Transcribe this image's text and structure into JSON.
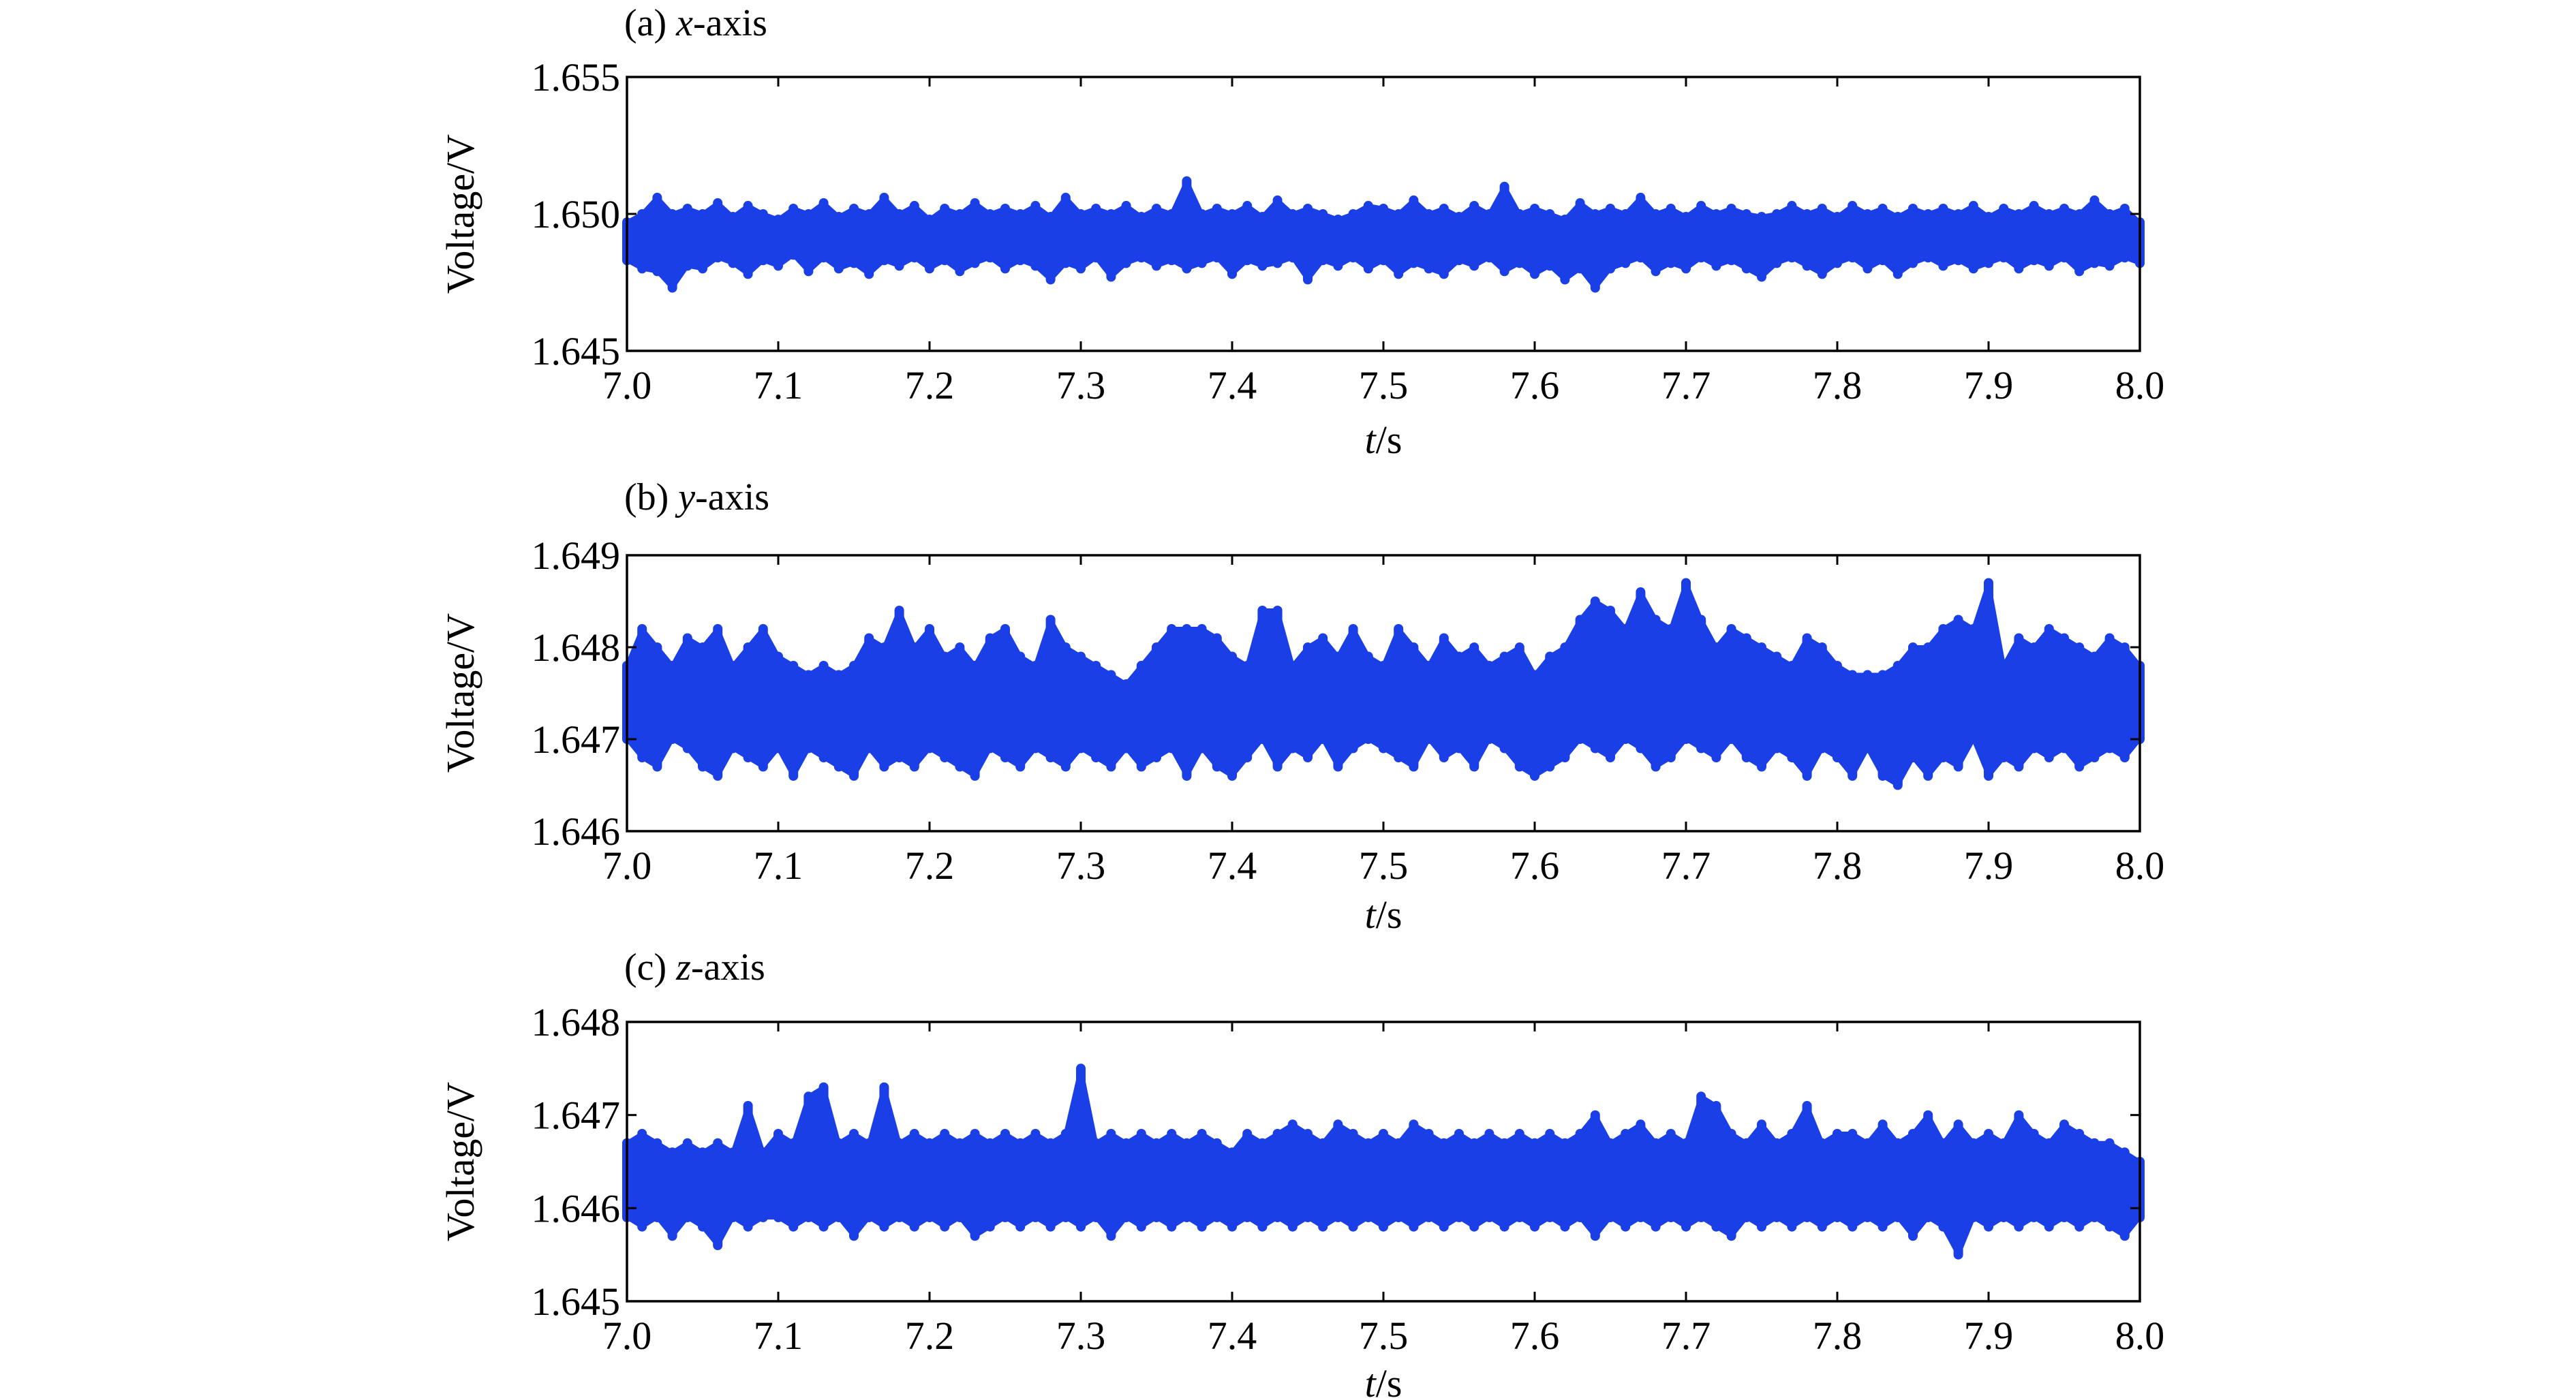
{
  "chart_data": [
    {
      "type": "line",
      "panel_label": "(a)",
      "title_var": "x",
      "title_suffix": "-axis",
      "xlabel_var": "t",
      "xlabel_unit": "/s",
      "ylabel": "Voltage/V",
      "xlim": [
        7.0,
        8.0
      ],
      "ylim": [
        1.645,
        1.655
      ],
      "x_ticks": [
        "7.0",
        "7.1",
        "7.2",
        "7.3",
        "7.4",
        "7.5",
        "7.6",
        "7.7",
        "7.8",
        "7.9",
        "8.0"
      ],
      "y_ticks": [
        "1.645",
        "1.650",
        "1.655"
      ],
      "grid": false,
      "color": "#1a3fe6",
      "series": [
        {
          "x": [
            7.0,
            7.01,
            7.02,
            7.03,
            7.04,
            7.05,
            7.06,
            7.07,
            7.08,
            7.09,
            7.1,
            7.11,
            7.12,
            7.13,
            7.14,
            7.15,
            7.16,
            7.17,
            7.18,
            7.19,
            7.2,
            7.21,
            7.22,
            7.23,
            7.24,
            7.25,
            7.26,
            7.27,
            7.28,
            7.29,
            7.3,
            7.31,
            7.32,
            7.33,
            7.34,
            7.35,
            7.36,
            7.37,
            7.38,
            7.39,
            7.4,
            7.41,
            7.42,
            7.43,
            7.44,
            7.45,
            7.46,
            7.47,
            7.48,
            7.49,
            7.5,
            7.51,
            7.52,
            7.53,
            7.54,
            7.55,
            7.56,
            7.57,
            7.58,
            7.59,
            7.6,
            7.61,
            7.62,
            7.63,
            7.64,
            7.65,
            7.66,
            7.67,
            7.68,
            7.69,
            7.7,
            7.71,
            7.72,
            7.73,
            7.74,
            7.75,
            7.76,
            7.77,
            7.78,
            7.79,
            7.8,
            7.81,
            7.82,
            7.83,
            7.84,
            7.85,
            7.86,
            7.87,
            7.88,
            7.89,
            7.9,
            7.91,
            7.92,
            7.93,
            7.94,
            7.95,
            7.96,
            7.97,
            7.98,
            7.99,
            8.0
          ],
          "low": [
            1.6483,
            1.648,
            1.6479,
            1.6473,
            1.6481,
            1.648,
            1.6484,
            1.6482,
            1.6478,
            1.6483,
            1.6481,
            1.6485,
            1.6479,
            1.6484,
            1.648,
            1.6482,
            1.6478,
            1.6483,
            1.6481,
            1.6484,
            1.648,
            1.6483,
            1.6479,
            1.6482,
            1.6484,
            1.648,
            1.6483,
            1.6481,
            1.6476,
            1.6482,
            1.648,
            1.6484,
            1.6477,
            1.6482,
            1.6484,
            1.6481,
            1.6483,
            1.648,
            1.6482,
            1.6484,
            1.6478,
            1.6483,
            1.6481,
            1.6482,
            1.6484,
            1.6476,
            1.6483,
            1.6481,
            1.6484,
            1.648,
            1.6483,
            1.6478,
            1.6482,
            1.648,
            1.6478,
            1.6483,
            1.6481,
            1.6484,
            1.6479,
            1.6482,
            1.6478,
            1.6481,
            1.6476,
            1.648,
            1.6473,
            1.648,
            1.6482,
            1.6484,
            1.6479,
            1.6482,
            1.648,
            1.6484,
            1.6481,
            1.6483,
            1.648,
            1.6477,
            1.6482,
            1.6484,
            1.6481,
            1.6478,
            1.6482,
            1.6484,
            1.648,
            1.6483,
            1.6478,
            1.6482,
            1.6484,
            1.6481,
            1.6483,
            1.648,
            1.6482,
            1.6484,
            1.648,
            1.6483,
            1.6481,
            1.6484,
            1.6479,
            1.6482,
            1.6481,
            1.6484,
            1.6482
          ],
          "high": [
            1.6497,
            1.65,
            1.6506,
            1.65,
            1.6502,
            1.65,
            1.6504,
            1.6499,
            1.6503,
            1.65,
            1.6498,
            1.6502,
            1.65,
            1.6504,
            1.6499,
            1.6502,
            1.65,
            1.6506,
            1.65,
            1.6503,
            1.6498,
            1.6502,
            1.65,
            1.6504,
            1.65,
            1.6502,
            1.65,
            1.6503,
            1.6499,
            1.6506,
            1.65,
            1.6502,
            1.65,
            1.6503,
            1.6499,
            1.6502,
            1.65,
            1.6512,
            1.65,
            1.6502,
            1.65,
            1.6503,
            1.6499,
            1.6505,
            1.65,
            1.6502,
            1.65,
            1.6498,
            1.65,
            1.6503,
            1.6502,
            1.65,
            1.6505,
            1.65,
            1.6502,
            1.6499,
            1.6503,
            1.65,
            1.651,
            1.65,
            1.6502,
            1.65,
            1.6498,
            1.6504,
            1.65,
            1.6502,
            1.65,
            1.6506,
            1.65,
            1.6502,
            1.6499,
            1.6503,
            1.65,
            1.6502,
            1.65,
            1.6499,
            1.65,
            1.6503,
            1.65,
            1.6502,
            1.6499,
            1.6503,
            1.65,
            1.6502,
            1.6499,
            1.6502,
            1.65,
            1.6502,
            1.65,
            1.6503,
            1.6499,
            1.6502,
            1.65,
            1.6503,
            1.65,
            1.6502,
            1.65,
            1.6505,
            1.65,
            1.6502,
            1.6497
          ]
        }
      ]
    },
    {
      "type": "line",
      "panel_label": "(b)",
      "title_var": "y",
      "title_suffix": "-axis",
      "xlabel_var": "t",
      "xlabel_unit": "/s",
      "ylabel": "Voltage/V",
      "xlim": [
        7.0,
        8.0
      ],
      "ylim": [
        1.646,
        1.649
      ],
      "x_ticks": [
        "7.0",
        "7.1",
        "7.2",
        "7.3",
        "7.4",
        "7.5",
        "7.6",
        "7.7",
        "7.8",
        "7.9",
        "8.0"
      ],
      "y_ticks": [
        "1.646",
        "1.647",
        "1.648",
        "1.649"
      ],
      "grid": false,
      "color": "#1a3fe6",
      "series": [
        {
          "x": [
            7.0,
            7.01,
            7.02,
            7.03,
            7.04,
            7.05,
            7.06,
            7.07,
            7.08,
            7.09,
            7.1,
            7.11,
            7.12,
            7.13,
            7.14,
            7.15,
            7.16,
            7.17,
            7.18,
            7.19,
            7.2,
            7.21,
            7.22,
            7.23,
            7.24,
            7.25,
            7.26,
            7.27,
            7.28,
            7.29,
            7.3,
            7.31,
            7.32,
            7.33,
            7.34,
            7.35,
            7.36,
            7.37,
            7.38,
            7.39,
            7.4,
            7.41,
            7.42,
            7.43,
            7.44,
            7.45,
            7.46,
            7.47,
            7.48,
            7.49,
            7.5,
            7.51,
            7.52,
            7.53,
            7.54,
            7.55,
            7.56,
            7.57,
            7.58,
            7.59,
            7.6,
            7.61,
            7.62,
            7.63,
            7.64,
            7.65,
            7.66,
            7.67,
            7.68,
            7.69,
            7.7,
            7.71,
            7.72,
            7.73,
            7.74,
            7.75,
            7.76,
            7.77,
            7.78,
            7.79,
            7.8,
            7.81,
            7.82,
            7.83,
            7.84,
            7.85,
            7.86,
            7.87,
            7.88,
            7.89,
            7.9,
            7.91,
            7.92,
            7.93,
            7.94,
            7.95,
            7.96,
            7.97,
            7.98,
            7.99,
            8.0
          ],
          "low": [
            1.647,
            1.6468,
            1.6467,
            1.647,
            1.6469,
            1.6467,
            1.6466,
            1.6469,
            1.6468,
            1.6467,
            1.6469,
            1.6466,
            1.6469,
            1.6468,
            1.6467,
            1.6466,
            1.6469,
            1.6467,
            1.6468,
            1.6467,
            1.6469,
            1.6468,
            1.6467,
            1.6466,
            1.6469,
            1.6468,
            1.6467,
            1.6469,
            1.6468,
            1.6467,
            1.6469,
            1.6468,
            1.6467,
            1.6469,
            1.6467,
            1.6468,
            1.6469,
            1.6466,
            1.6469,
            1.6467,
            1.6466,
            1.6468,
            1.647,
            1.6467,
            1.6469,
            1.6468,
            1.647,
            1.6467,
            1.6469,
            1.647,
            1.6469,
            1.6468,
            1.6467,
            1.647,
            1.6468,
            1.6469,
            1.6467,
            1.647,
            1.6469,
            1.6467,
            1.6466,
            1.6467,
            1.6468,
            1.647,
            1.6469,
            1.6468,
            1.647,
            1.6469,
            1.6467,
            1.6468,
            1.647,
            1.6469,
            1.6468,
            1.647,
            1.6468,
            1.6467,
            1.6469,
            1.6468,
            1.6466,
            1.6469,
            1.6468,
            1.6466,
            1.6469,
            1.6466,
            1.6465,
            1.6468,
            1.6466,
            1.6468,
            1.6467,
            1.647,
            1.6466,
            1.6468,
            1.6467,
            1.6469,
            1.6468,
            1.6469,
            1.6467,
            1.6468,
            1.6469,
            1.6468,
            1.647
          ],
          "high": [
            1.6478,
            1.6482,
            1.648,
            1.6478,
            1.6481,
            1.648,
            1.6482,
            1.6478,
            1.648,
            1.6482,
            1.6479,
            1.6478,
            1.6477,
            1.6478,
            1.6477,
            1.6478,
            1.6481,
            1.648,
            1.6484,
            1.648,
            1.6482,
            1.6479,
            1.648,
            1.6478,
            1.6481,
            1.6482,
            1.6479,
            1.6478,
            1.6483,
            1.648,
            1.6479,
            1.6478,
            1.6477,
            1.6476,
            1.6478,
            1.648,
            1.6482,
            1.6482,
            1.6482,
            1.6481,
            1.6479,
            1.6478,
            1.6484,
            1.6484,
            1.6478,
            1.648,
            1.6481,
            1.6479,
            1.6482,
            1.6479,
            1.6478,
            1.6482,
            1.648,
            1.6478,
            1.6481,
            1.6479,
            1.648,
            1.6478,
            1.6479,
            1.648,
            1.6477,
            1.6479,
            1.648,
            1.6483,
            1.6485,
            1.6484,
            1.6482,
            1.6486,
            1.6483,
            1.6482,
            1.6487,
            1.6483,
            1.648,
            1.6482,
            1.6481,
            1.648,
            1.6479,
            1.6478,
            1.6481,
            1.648,
            1.6478,
            1.6477,
            1.6477,
            1.6477,
            1.6478,
            1.648,
            1.648,
            1.6482,
            1.6483,
            1.6482,
            1.6487,
            1.6478,
            1.6481,
            1.648,
            1.6482,
            1.6481,
            1.648,
            1.6479,
            1.6481,
            1.648,
            1.6478
          ]
        }
      ]
    },
    {
      "type": "line",
      "panel_label": "(c)",
      "title_var": "z",
      "title_suffix": "-axis",
      "xlabel_var": "t",
      "xlabel_unit": "/s",
      "ylabel": "Voltage/V",
      "xlim": [
        7.0,
        8.0
      ],
      "ylim": [
        1.645,
        1.648
      ],
      "x_ticks": [
        "7.0",
        "7.1",
        "7.2",
        "7.3",
        "7.4",
        "7.5",
        "7.6",
        "7.7",
        "7.8",
        "7.9",
        "8.0"
      ],
      "y_ticks": [
        "1.645",
        "1.646",
        "1.647",
        "1.648"
      ],
      "grid": false,
      "color": "#1a3fe6",
      "series": [
        {
          "x": [
            7.0,
            7.01,
            7.02,
            7.03,
            7.04,
            7.05,
            7.06,
            7.07,
            7.08,
            7.09,
            7.1,
            7.11,
            7.12,
            7.13,
            7.14,
            7.15,
            7.16,
            7.17,
            7.18,
            7.19,
            7.2,
            7.21,
            7.22,
            7.23,
            7.24,
            7.25,
            7.26,
            7.27,
            7.28,
            7.29,
            7.3,
            7.31,
            7.32,
            7.33,
            7.34,
            7.35,
            7.36,
            7.37,
            7.38,
            7.39,
            7.4,
            7.41,
            7.42,
            7.43,
            7.44,
            7.45,
            7.46,
            7.47,
            7.48,
            7.49,
            7.5,
            7.51,
            7.52,
            7.53,
            7.54,
            7.55,
            7.56,
            7.57,
            7.58,
            7.59,
            7.6,
            7.61,
            7.62,
            7.63,
            7.64,
            7.65,
            7.66,
            7.67,
            7.68,
            7.69,
            7.7,
            7.71,
            7.72,
            7.73,
            7.74,
            7.75,
            7.76,
            7.77,
            7.78,
            7.79,
            7.8,
            7.81,
            7.82,
            7.83,
            7.84,
            7.85,
            7.86,
            7.87,
            7.88,
            7.89,
            7.9,
            7.91,
            7.92,
            7.93,
            7.94,
            7.95,
            7.96,
            7.97,
            7.98,
            7.99,
            8.0
          ],
          "low": [
            1.6459,
            1.6458,
            1.6459,
            1.6457,
            1.6459,
            1.6458,
            1.6456,
            1.6459,
            1.6458,
            1.6459,
            1.6459,
            1.6458,
            1.6459,
            1.6458,
            1.6459,
            1.6457,
            1.6459,
            1.6458,
            1.6459,
            1.6458,
            1.6459,
            1.6458,
            1.6459,
            1.6457,
            1.6458,
            1.6459,
            1.6458,
            1.6459,
            1.6458,
            1.6459,
            1.6458,
            1.6459,
            1.6457,
            1.6459,
            1.6458,
            1.6459,
            1.6458,
            1.6459,
            1.6458,
            1.6459,
            1.6458,
            1.6459,
            1.6458,
            1.6459,
            1.6458,
            1.6459,
            1.6458,
            1.6459,
            1.6458,
            1.6459,
            1.6458,
            1.6459,
            1.6458,
            1.6459,
            1.6458,
            1.6459,
            1.6458,
            1.6459,
            1.6458,
            1.6459,
            1.6458,
            1.6459,
            1.6458,
            1.6459,
            1.6457,
            1.6459,
            1.6458,
            1.6459,
            1.6458,
            1.6459,
            1.6458,
            1.6459,
            1.6458,
            1.6457,
            1.6459,
            1.6458,
            1.6459,
            1.6458,
            1.6459,
            1.6458,
            1.6459,
            1.6458,
            1.6459,
            1.6458,
            1.6459,
            1.6457,
            1.6459,
            1.6458,
            1.6455,
            1.6459,
            1.6458,
            1.6459,
            1.6458,
            1.6459,
            1.6458,
            1.6459,
            1.6458,
            1.6459,
            1.6458,
            1.6457,
            1.6459
          ],
          "high": [
            1.6467,
            1.6468,
            1.6467,
            1.6466,
            1.6467,
            1.6466,
            1.6467,
            1.6466,
            1.6471,
            1.6466,
            1.6468,
            1.6467,
            1.6472,
            1.6473,
            1.6467,
            1.6468,
            1.6467,
            1.6473,
            1.6467,
            1.6468,
            1.6467,
            1.6468,
            1.6467,
            1.6468,
            1.6467,
            1.6468,
            1.6467,
            1.6468,
            1.6467,
            1.6468,
            1.6475,
            1.6467,
            1.6468,
            1.6467,
            1.6468,
            1.6467,
            1.6468,
            1.6467,
            1.6468,
            1.6467,
            1.6466,
            1.6468,
            1.6467,
            1.6468,
            1.6469,
            1.6468,
            1.6467,
            1.6469,
            1.6468,
            1.6467,
            1.6468,
            1.6467,
            1.6469,
            1.6468,
            1.6467,
            1.6468,
            1.6467,
            1.6468,
            1.6467,
            1.6468,
            1.6467,
            1.6468,
            1.6467,
            1.6468,
            1.647,
            1.6467,
            1.6468,
            1.6469,
            1.6467,
            1.6468,
            1.6467,
            1.6472,
            1.6471,
            1.6468,
            1.6467,
            1.6469,
            1.6467,
            1.6468,
            1.6471,
            1.6467,
            1.6468,
            1.6468,
            1.6467,
            1.6469,
            1.6467,
            1.6468,
            1.647,
            1.6467,
            1.6469,
            1.6467,
            1.6468,
            1.6467,
            1.647,
            1.6468,
            1.6467,
            1.6469,
            1.6468,
            1.6467,
            1.6467,
            1.6466,
            1.6465
          ]
        }
      ]
    }
  ]
}
